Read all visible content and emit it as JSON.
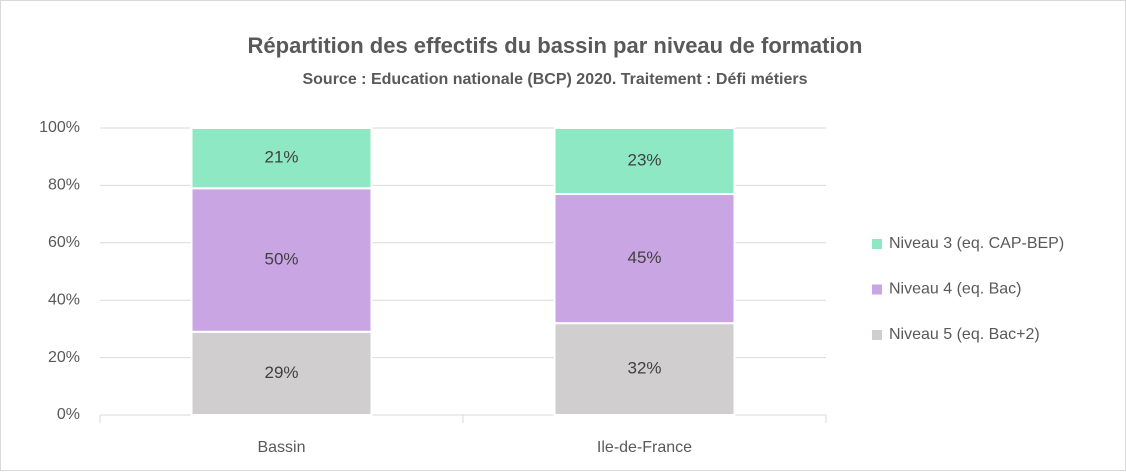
{
  "chart_data": {
    "type": "stacked_bar",
    "title": "Répartition des effectifs du bassin par niveau de formation",
    "subtitle": "Source : Education nationale (BCP) 2020. Traitement : Défi métiers",
    "categories": [
      "Bassin",
      "Ile-de-France"
    ],
    "series": [
      {
        "name": "Niveau 3 (eq. CAP-BEP)",
        "color": "#8ee8c4",
        "values": [
          21,
          23
        ],
        "value_labels": [
          "21%",
          "23%"
        ]
      },
      {
        "name": "Niveau 4 (eq. Bac)",
        "color": "#c9a5e4",
        "values": [
          50,
          45
        ],
        "value_labels": [
          "50%",
          "45%"
        ]
      },
      {
        "name": "Niveau 5 (eq. Bac+2)",
        "color": "#d0cece",
        "values": [
          29,
          32
        ],
        "value_labels": [
          "29%",
          "32%"
        ]
      }
    ],
    "ylim": [
      0,
      100
    ],
    "yticks": [
      {
        "value": 0,
        "label": "0%"
      },
      {
        "value": 20,
        "label": "20%"
      },
      {
        "value": 40,
        "label": "40%"
      },
      {
        "value": 60,
        "label": "60%"
      },
      {
        "value": 80,
        "label": "80%"
      },
      {
        "value": 100,
        "label": "100%"
      }
    ],
    "grid": true,
    "legend": "right"
  }
}
